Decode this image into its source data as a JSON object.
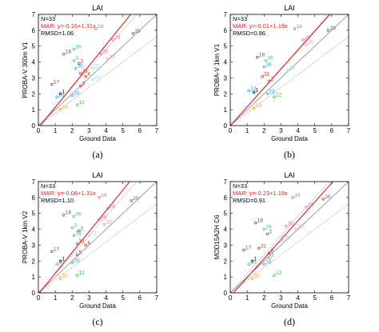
{
  "colors": {
    "fit": "#d62020",
    "ref": "#888888",
    "frame": "#000000"
  },
  "chart_data": [
    {
      "type": "scatter",
      "panel": "(a)",
      "title": "LAI",
      "xlabel": "Ground Data",
      "ylabel": "PROBA-V 300m V1",
      "xlim": [
        0,
        7
      ],
      "ylim": [
        0,
        7
      ],
      "xticks": [
        "0",
        "1",
        "2",
        "3",
        "4",
        "5",
        "6",
        "7"
      ],
      "yticks": [
        "0",
        "1",
        "2",
        "3",
        "4",
        "5",
        "6",
        "7"
      ],
      "stats": {
        "n": "N=33",
        "mar": "MAR: y=-0.16+1.31x",
        "rmsd": "RMSD=1.06"
      },
      "fit": {
        "intercept": -0.16,
        "slope": 1.31
      },
      "points": [
        {
          "label": "19",
          "x": 3.4,
          "y": 6.1,
          "color": "#888888"
        },
        {
          "label": "20",
          "x": 5.6,
          "y": 5.8,
          "color": "#555555"
        },
        {
          "label": "29",
          "x": 4.4,
          "y": 5.4,
          "color": "#e060c0"
        },
        {
          "label": "18",
          "x": 1.5,
          "y": 4.5,
          "color": "#555555"
        },
        {
          "label": "39",
          "x": 2.1,
          "y": 4.8,
          "color": "#30c0a0"
        },
        {
          "label": "30",
          "x": 3.7,
          "y": 4.5,
          "color": "#e060c0"
        },
        {
          "label": "10",
          "x": 4.1,
          "y": 4.2,
          "color": "#e090b0"
        },
        {
          "label": "3",
          "x": 2.1,
          "y": 4.1,
          "color": "#30c0a0"
        },
        {
          "label": "2",
          "x": 2.4,
          "y": 3.9,
          "color": "#d62020"
        },
        {
          "label": "38",
          "x": 2.2,
          "y": 3.6,
          "color": "#30a0e0"
        },
        {
          "label": "22",
          "x": 3.2,
          "y": 3.6,
          "color": "#a0d0f0"
        },
        {
          "label": "31",
          "x": 2.5,
          "y": 3.3,
          "color": "#d62020"
        },
        {
          "label": "4",
          "x": 2.8,
          "y": 3.1,
          "color": "#d62020"
        },
        {
          "label": "26",
          "x": 3.2,
          "y": 2.9,
          "color": "#a0d0f0"
        },
        {
          "label": "17",
          "x": 0.8,
          "y": 2.6,
          "color": "#555555"
        },
        {
          "label": "5",
          "x": 2.5,
          "y": 2.5,
          "color": "#d62020"
        },
        {
          "label": "1",
          "x": 1.3,
          "y": 2.0,
          "color": "#000000"
        },
        {
          "label": "13",
          "x": 1.1,
          "y": 1.8,
          "color": "#30a0e0"
        },
        {
          "label": "28",
          "x": 2.0,
          "y": 1.9,
          "color": "#30a0e0"
        },
        {
          "label": "12",
          "x": 2.3,
          "y": 1.3,
          "color": "#30c030"
        },
        {
          "label": "33",
          "x": 1.3,
          "y": 1.0,
          "color": "#f0a020"
        }
      ]
    },
    {
      "type": "scatter",
      "panel": "(b)",
      "title": "LAI",
      "xlabel": "Ground Data",
      "ylabel": "PROBA-V 1km V1",
      "xlim": [
        0,
        7
      ],
      "ylim": [
        0,
        7
      ],
      "xticks": [
        "0",
        "1",
        "2",
        "3",
        "4",
        "5",
        "6",
        "7"
      ],
      "yticks": [
        "0",
        "1",
        "2",
        "3",
        "4",
        "5",
        "6",
        "7"
      ],
      "stats": {
        "n": "N=33",
        "mar": "MAR: y=-0.01+1.19x",
        "rmsd": "RMSD=0.86"
      },
      "fit": {
        "intercept": -0.01,
        "slope": 1.19
      },
      "points": [
        {
          "label": "19",
          "x": 3.8,
          "y": 6.1,
          "color": "#888888"
        },
        {
          "label": "20",
          "x": 5.8,
          "y": 6.0,
          "color": "#555555"
        },
        {
          "label": "29",
          "x": 4.3,
          "y": 5.4,
          "color": "#e060c0"
        },
        {
          "label": "10",
          "x": 4.5,
          "y": 5.1,
          "color": "#e090b0"
        },
        {
          "label": "18",
          "x": 1.6,
          "y": 4.3,
          "color": "#555555"
        },
        {
          "label": "39",
          "x": 2.1,
          "y": 4.1,
          "color": "#30c0a0"
        },
        {
          "label": "38",
          "x": 2.0,
          "y": 3.7,
          "color": "#30a0e0"
        },
        {
          "label": "26",
          "x": 3.4,
          "y": 3.5,
          "color": "#a0d0f0"
        },
        {
          "label": "31",
          "x": 1.9,
          "y": 3.1,
          "color": "#d62020"
        },
        {
          "label": "2",
          "x": 2.3,
          "y": 2.8,
          "color": "#d62020"
        },
        {
          "label": "13",
          "x": 1.1,
          "y": 2.2,
          "color": "#30a0e0"
        },
        {
          "label": "1",
          "x": 1.4,
          "y": 2.1,
          "color": "#000000"
        },
        {
          "label": "28",
          "x": 2.2,
          "y": 2.0,
          "color": "#30a0e0"
        },
        {
          "label": "12",
          "x": 2.6,
          "y": 1.8,
          "color": "#30c030"
        },
        {
          "label": "33",
          "x": 1.4,
          "y": 1.1,
          "color": "#f0a020"
        }
      ]
    },
    {
      "type": "scatter",
      "panel": "(c)",
      "title": "LAI",
      "xlabel": "Ground Data",
      "ylabel": "PROBA-V 1km V2",
      "xlim": [
        0,
        7
      ],
      "ylim": [
        0,
        7
      ],
      "xticks": [
        "0",
        "1",
        "2",
        "3",
        "4",
        "5",
        "6",
        "7"
      ],
      "yticks": [
        "0",
        "1",
        "2",
        "3",
        "4",
        "5",
        "6",
        "7"
      ],
      "stats": {
        "n": "N=33",
        "mar": "MAR: y=-0.08+1.31x",
        "rmsd": "RMSD=1.10"
      },
      "fit": {
        "intercept": -0.08,
        "slope": 1.31
      },
      "points": [
        {
          "label": "19",
          "x": 3.6,
          "y": 6.0,
          "color": "#888888"
        },
        {
          "label": "20",
          "x": 5.5,
          "y": 5.8,
          "color": "#555555"
        },
        {
          "label": "29",
          "x": 4.1,
          "y": 5.3,
          "color": "#e060c0"
        },
        {
          "label": "18",
          "x": 1.5,
          "y": 4.9,
          "color": "#555555"
        },
        {
          "label": "39",
          "x": 2.1,
          "y": 4.8,
          "color": "#30c0a0"
        },
        {
          "label": "30",
          "x": 3.6,
          "y": 4.6,
          "color": "#e060c0"
        },
        {
          "label": "10",
          "x": 3.9,
          "y": 4.3,
          "color": "#e090b0"
        },
        {
          "label": "3",
          "x": 2.0,
          "y": 4.1,
          "color": "#30c0a0"
        },
        {
          "label": "2",
          "x": 2.4,
          "y": 3.9,
          "color": "#d62020"
        },
        {
          "label": "38",
          "x": 2.1,
          "y": 3.6,
          "color": "#30a0e0"
        },
        {
          "label": "22",
          "x": 3.0,
          "y": 3.6,
          "color": "#a0d0f0"
        },
        {
          "label": "31",
          "x": 2.3,
          "y": 3.1,
          "color": "#d62020"
        },
        {
          "label": "4",
          "x": 2.8,
          "y": 3.0,
          "color": "#d62020"
        },
        {
          "label": "17",
          "x": 0.8,
          "y": 2.6,
          "color": "#555555"
        },
        {
          "label": "5",
          "x": 2.3,
          "y": 2.4,
          "color": "#d62020"
        },
        {
          "label": "1",
          "x": 1.3,
          "y": 2.0,
          "color": "#000000"
        },
        {
          "label": "13",
          "x": 1.1,
          "y": 1.8,
          "color": "#30a0e0"
        },
        {
          "label": "28",
          "x": 2.0,
          "y": 1.9,
          "color": "#30a0e0"
        },
        {
          "label": "12",
          "x": 2.3,
          "y": 1.1,
          "color": "#30c030"
        },
        {
          "label": "33",
          "x": 1.3,
          "y": 0.9,
          "color": "#f0a020"
        }
      ]
    },
    {
      "type": "scatter",
      "panel": "(d)",
      "title": "LAI",
      "xlabel": "Ground Data",
      "ylabel": "MOD15A2H C6",
      "xlim": [
        0,
        7
      ],
      "ylim": [
        0,
        7
      ],
      "xticks": [
        "0",
        "1",
        "2",
        "3",
        "4",
        "5",
        "6",
        "7"
      ],
      "yticks": [
        "0",
        "1",
        "2",
        "3",
        "4",
        "5",
        "6",
        "7"
      ],
      "stats": {
        "n": "N=33",
        "mar": "MAR: y=-0.23+1.19x",
        "rmsd": "RMSD=0.91"
      },
      "fit": {
        "intercept": -0.23,
        "slope": 1.19
      },
      "points": [
        {
          "label": "19",
          "x": 3.7,
          "y": 6.0,
          "color": "#888888"
        },
        {
          "label": "20",
          "x": 5.5,
          "y": 5.9,
          "color": "#555555"
        },
        {
          "label": "29",
          "x": 4.5,
          "y": 5.4,
          "color": "#e060c0"
        },
        {
          "label": "18",
          "x": 1.5,
          "y": 4.4,
          "color": "#555555"
        },
        {
          "label": "39",
          "x": 2.0,
          "y": 4.0,
          "color": "#30c0a0"
        },
        {
          "label": "30",
          "x": 3.3,
          "y": 4.2,
          "color": "#e060c0"
        },
        {
          "label": "10",
          "x": 3.9,
          "y": 4.0,
          "color": "#e090b0"
        },
        {
          "label": "2",
          "x": 2.2,
          "y": 3.7,
          "color": "#d62020"
        },
        {
          "label": "22",
          "x": 3.0,
          "y": 3.5,
          "color": "#a0d0f0"
        },
        {
          "label": "26",
          "x": 3.1,
          "y": 3.3,
          "color": "#a0d0f0"
        },
        {
          "label": "31",
          "x": 1.7,
          "y": 2.8,
          "color": "#d62020"
        },
        {
          "label": "5",
          "x": 2.3,
          "y": 2.5,
          "color": "#d62020"
        },
        {
          "label": "3",
          "x": 2.3,
          "y": 2.2,
          "color": "#30c0a0"
        },
        {
          "label": "17",
          "x": 0.8,
          "y": 2.7,
          "color": "#555555"
        },
        {
          "label": "1",
          "x": 1.3,
          "y": 2.0,
          "color": "#000000"
        },
        {
          "label": "13",
          "x": 1.1,
          "y": 1.8,
          "color": "#30a0e0"
        },
        {
          "label": "28",
          "x": 2.0,
          "y": 1.8,
          "color": "#30a0e0"
        },
        {
          "label": "12",
          "x": 2.6,
          "y": 1.1,
          "color": "#30c030"
        },
        {
          "label": "33",
          "x": 1.3,
          "y": 0.9,
          "color": "#f0a020"
        }
      ]
    }
  ]
}
